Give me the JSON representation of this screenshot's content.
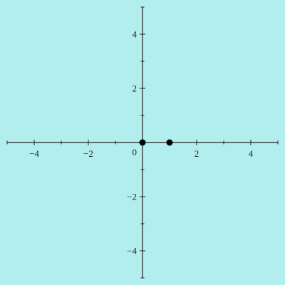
{
  "chart_data": {
    "type": "scatter",
    "xlim": [
      -5,
      5
    ],
    "ylim": [
      -5,
      5
    ],
    "grid": false,
    "x_ticks": [
      {
        "value": -4,
        "label": "−4"
      },
      {
        "value": -2,
        "label": "−2"
      },
      {
        "value": 2,
        "label": "2"
      },
      {
        "value": 4,
        "label": "4"
      }
    ],
    "y_ticks": [
      {
        "value": 4,
        "label": "4"
      },
      {
        "value": 2,
        "label": "2"
      },
      {
        "value": -2,
        "label": "−2"
      },
      {
        "value": -4,
        "label": "−4"
      }
    ],
    "origin_label": "0",
    "series": [
      {
        "points": [
          {
            "x": 0,
            "y": 0
          },
          {
            "x": 1,
            "y": 0
          }
        ]
      }
    ],
    "colors": {
      "background": "#b2eeee",
      "axis": "#222222",
      "point": "#000000"
    }
  }
}
